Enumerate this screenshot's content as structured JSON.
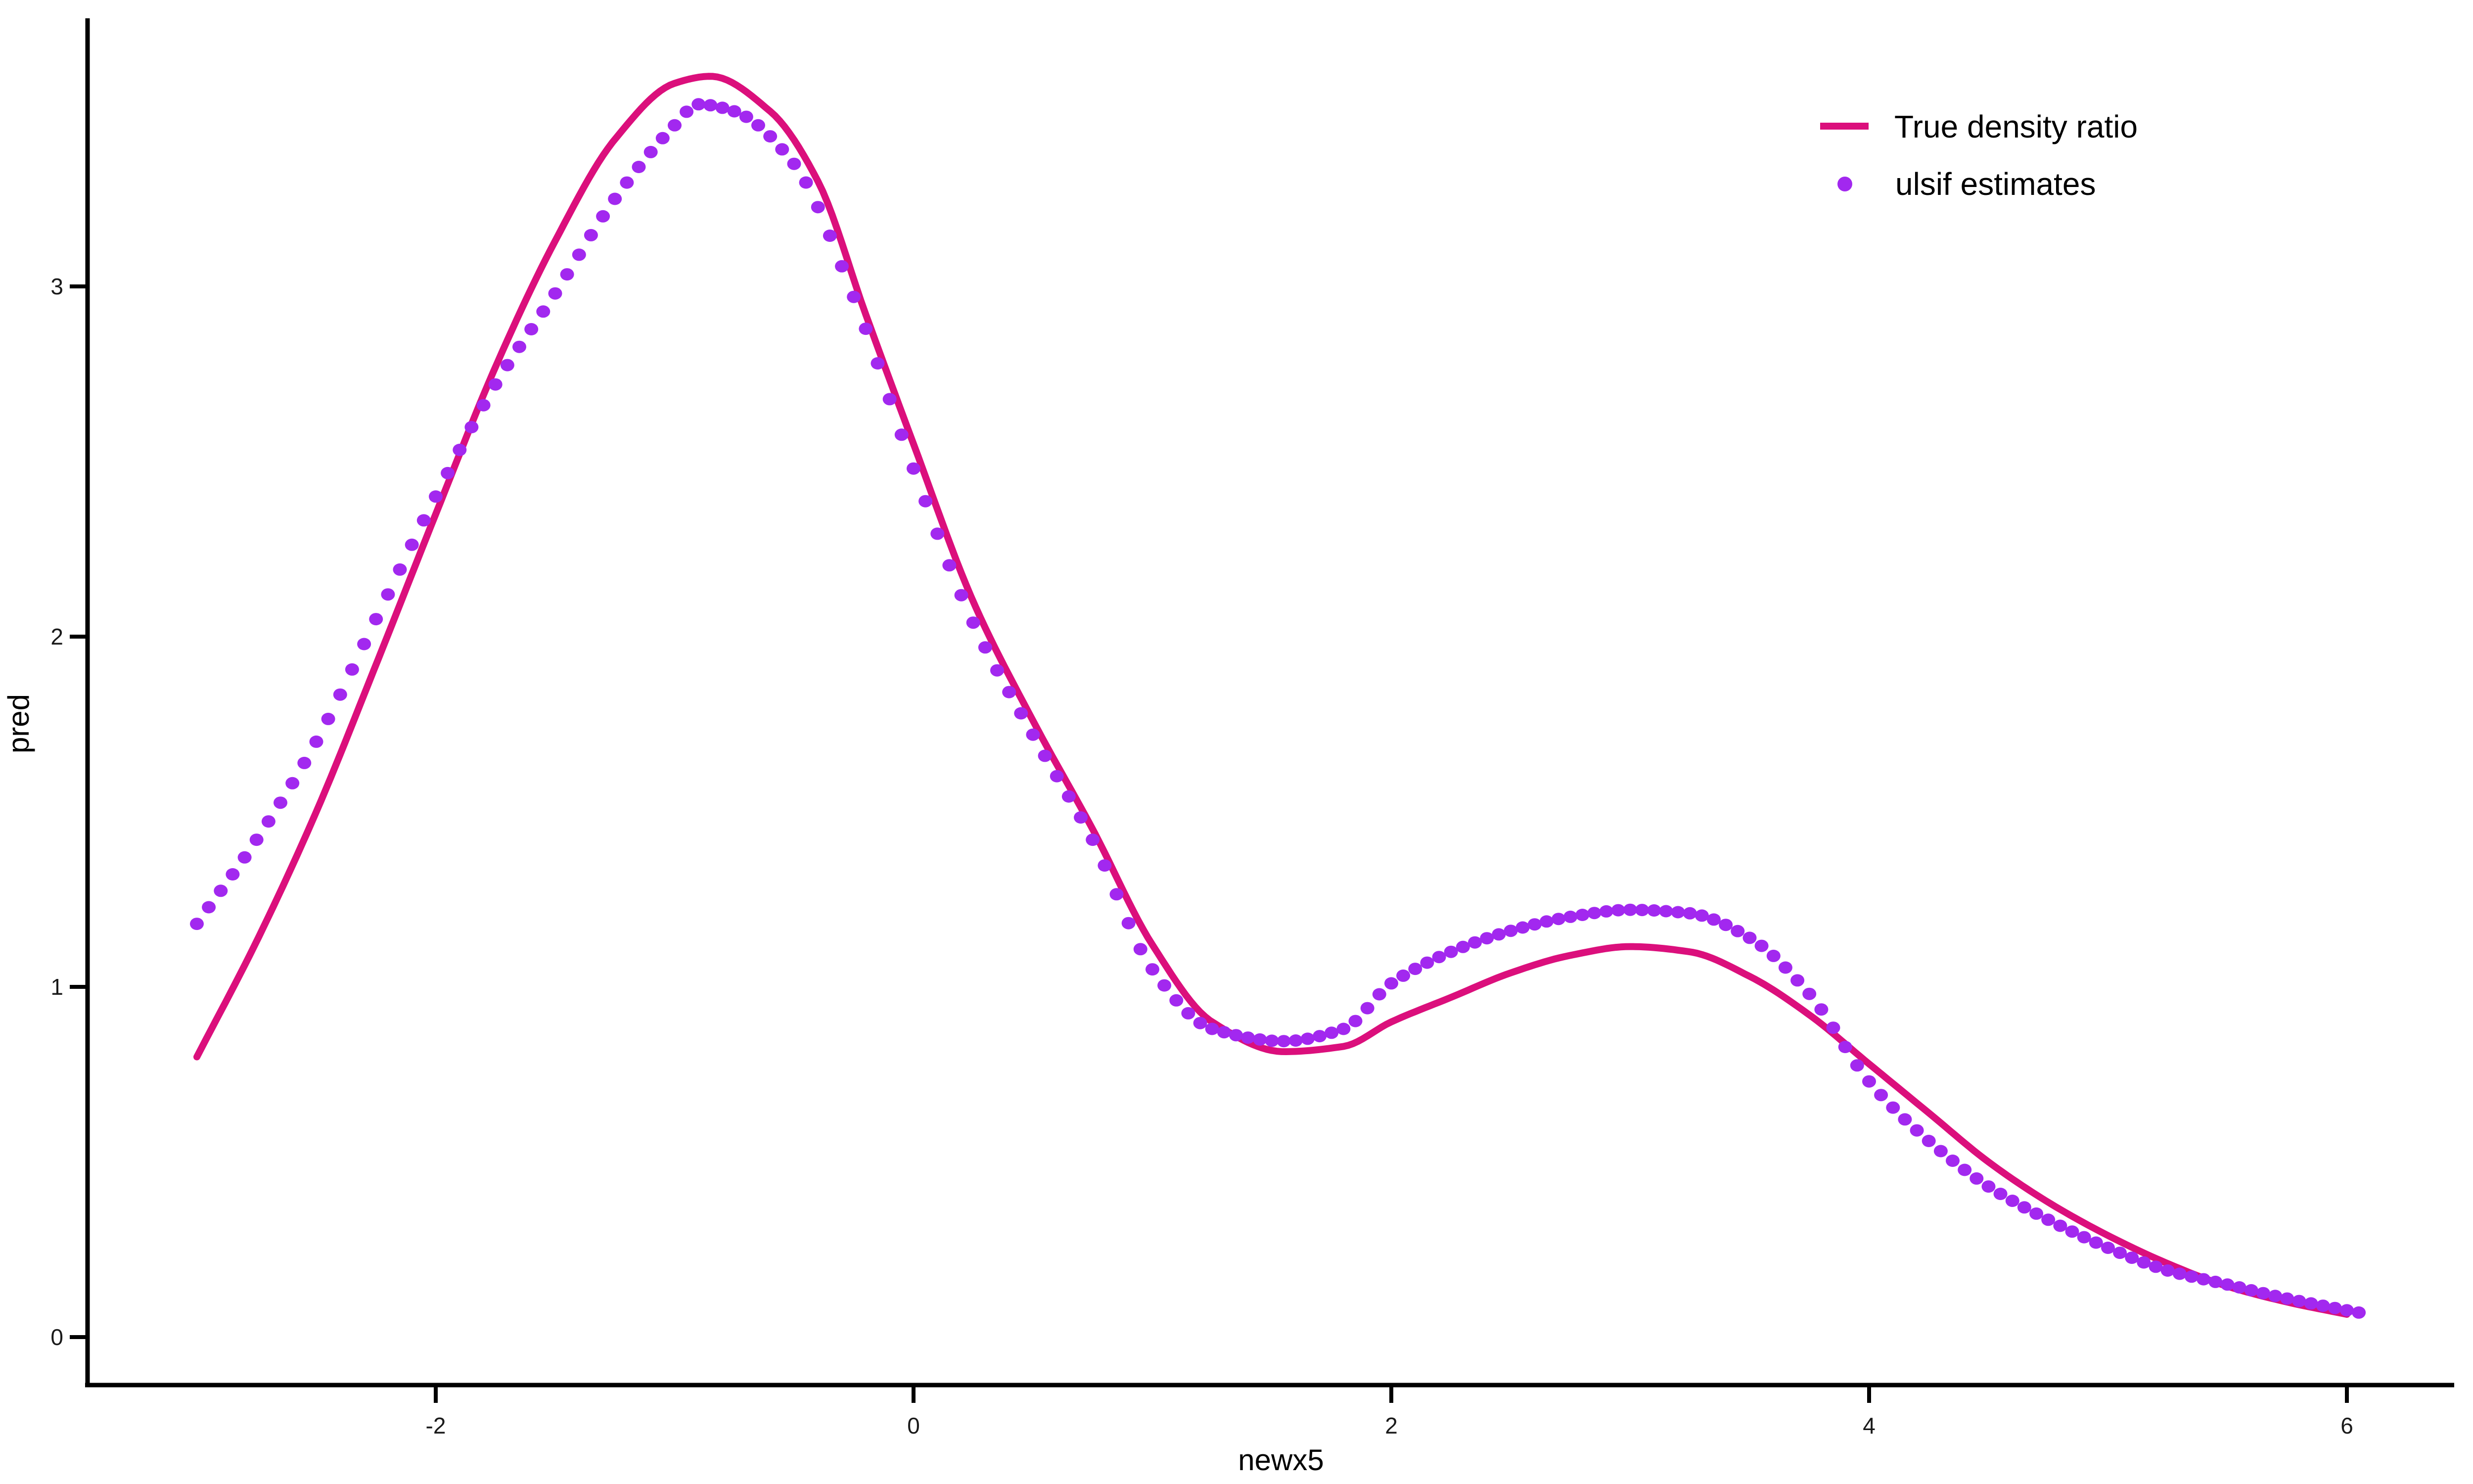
{
  "chart_data": {
    "type": "line+scatter",
    "title": "",
    "xlabel": "newx5",
    "ylabel": "pred",
    "x_ticks": {
      "values": [
        -2,
        0,
        2,
        4,
        6
      ],
      "labels": [
        "-2",
        "0",
        "2",
        "4",
        "6"
      ]
    },
    "y_ticks": {
      "values": [
        0,
        1,
        2,
        3
      ],
      "labels": [
        "0",
        "1",
        "2",
        "3"
      ]
    },
    "xlim": [
      -3.46,
      6.45
    ],
    "ylim": [
      -0.14,
      3.77
    ],
    "grid": false,
    "background": "#FFFFFF",
    "axis_color": "#000000",
    "text_color": "#1A1A1A",
    "legend": {
      "position": "inside-top-right"
    },
    "series": [
      {
        "name": "True density ratio",
        "type": "line",
        "color": "#DB0F7C",
        "stroke_width": 14,
        "x": [
          -3.0,
          -2.75,
          -2.5,
          -2.25,
          -2.0,
          -1.75,
          -1.5,
          -1.25,
          -1.0,
          -0.85,
          -0.6,
          -0.4,
          -0.2,
          0.0,
          0.25,
          0.5,
          0.75,
          1.0,
          1.25,
          1.55,
          1.8,
          2.0,
          2.25,
          2.5,
          2.75,
          3.0,
          3.25,
          3.5,
          3.75,
          4.0,
          4.25,
          4.5,
          4.75,
          5.0,
          5.25,
          5.5,
          5.75,
          6.0
        ],
        "y": [
          0.8,
          1.13,
          1.5,
          1.92,
          2.35,
          2.77,
          3.13,
          3.42,
          3.58,
          3.6,
          3.5,
          3.3,
          2.92,
          2.55,
          2.1,
          1.76,
          1.45,
          1.12,
          0.9,
          0.815,
          0.83,
          0.9,
          0.97,
          1.04,
          1.09,
          1.115,
          1.1,
          1.03,
          0.92,
          0.78,
          0.64,
          0.5,
          0.385,
          0.29,
          0.21,
          0.145,
          0.1,
          0.065
        ]
      },
      {
        "name": "ulsif estimates",
        "type": "scatter",
        "color": "#A228EF",
        "marker": "circle",
        "marker_rx": 14,
        "marker_ry": 12.5,
        "x_start": -3.0,
        "x_step": 0.05,
        "x_end": 6.05,
        "control_x": [
          -3.0,
          -2.75,
          -2.5,
          -2.25,
          -2.0,
          -1.75,
          -1.5,
          -1.25,
          -1.0,
          -0.9,
          -0.75,
          -0.5,
          -0.25,
          0.0,
          0.25,
          0.5,
          0.75,
          1.0,
          1.25,
          1.55,
          1.8,
          2.0,
          2.25,
          2.5,
          2.75,
          3.0,
          3.25,
          3.5,
          3.75,
          4.0,
          4.25,
          4.5,
          4.75,
          5.0,
          5.25,
          5.5,
          5.75,
          6.05
        ],
        "control_y": [
          1.18,
          1.42,
          1.7,
          2.05,
          2.4,
          2.72,
          2.98,
          3.25,
          3.46,
          3.52,
          3.5,
          3.35,
          2.97,
          2.48,
          2.04,
          1.72,
          1.42,
          1.05,
          0.88,
          0.845,
          0.88,
          1.01,
          1.1,
          1.16,
          1.2,
          1.22,
          1.21,
          1.14,
          0.98,
          0.73,
          0.56,
          0.43,
          0.335,
          0.255,
          0.19,
          0.15,
          0.11,
          0.07
        ]
      }
    ]
  }
}
